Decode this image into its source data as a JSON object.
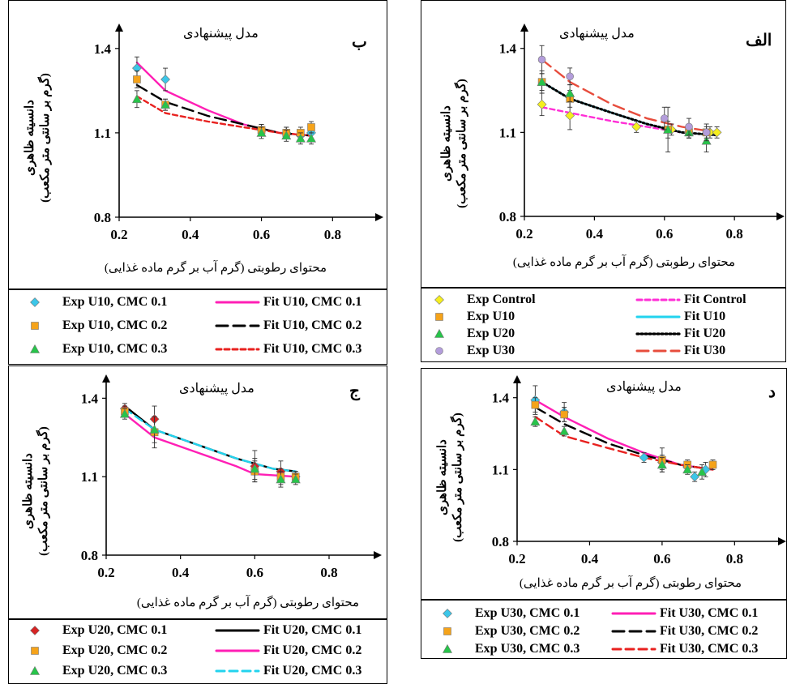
{
  "chart_data": [
    {
      "id": "alef",
      "type": "scatter",
      "panel_letter": "الف",
      "title": "مدل پیشنهادی",
      "xlabel": "محتوای رطوبتی (گرم آب بر گرم ماده غذایی)",
      "ylabel_line1": "دانسیته ظاهری",
      "ylabel_line2": "(گرم بر سانتی متر مکعب)",
      "xlim": [
        0.2,
        0.92
      ],
      "ylim": [
        0.8,
        1.46
      ],
      "xticks": [
        "0.2",
        "0.4",
        "0.6",
        "0.8"
      ],
      "yticks": [
        "0.8",
        "1.1",
        "1.4"
      ],
      "series": [
        {
          "name": "Exp Control",
          "kind": "exp",
          "marker": "diamond",
          "color": "#f5ee1f",
          "x": [
            0.25,
            0.33,
            0.52,
            0.62,
            0.67,
            0.73,
            0.75
          ],
          "y": [
            1.2,
            1.16,
            1.12,
            1.11,
            1.1,
            1.1,
            1.1
          ],
          "err": [
            0.04,
            0.05,
            0.02,
            0.02,
            0.02,
            0.02,
            0.02
          ]
        },
        {
          "name": "Exp U10",
          "kind": "exp",
          "marker": "square",
          "color": "#f5a31a",
          "x": [
            0.25,
            0.33,
            0.61,
            0.67,
            0.72
          ],
          "y": [
            1.28,
            1.22,
            1.11,
            1.1,
            1.1
          ],
          "err": [
            0.04,
            0.03,
            0.03,
            0.02,
            0.02
          ]
        },
        {
          "name": "Exp U20",
          "kind": "exp",
          "marker": "triangle",
          "color": "#27c44a",
          "x": [
            0.25,
            0.33,
            0.61,
            0.67,
            0.72
          ],
          "y": [
            1.28,
            1.24,
            1.11,
            1.1,
            1.07
          ],
          "err": [
            0.03,
            0.03,
            0.08,
            0.02,
            0.04
          ]
        },
        {
          "name": "Exp U30",
          "kind": "exp",
          "marker": "circle",
          "color": "#b39ddb",
          "x": [
            0.25,
            0.33,
            0.6,
            0.67,
            0.72
          ],
          "y": [
            1.36,
            1.3,
            1.15,
            1.12,
            1.1
          ],
          "err": [
            0.05,
            0.03,
            0.04,
            0.03,
            0.03
          ]
        },
        {
          "name": "Fit Control",
          "kind": "fit",
          "color": "#ff2ed6",
          "dash": "6,4",
          "x": [
            0.25,
            0.33,
            0.45,
            0.55,
            0.65,
            0.75
          ],
          "y": [
            1.19,
            1.17,
            1.14,
            1.12,
            1.1,
            1.09
          ]
        },
        {
          "name": "Fit U10",
          "kind": "fit",
          "color": "#22d3ee",
          "dash": "",
          "x": [
            0.25,
            0.33,
            0.45,
            0.55,
            0.65,
            0.75
          ],
          "y": [
            1.28,
            1.22,
            1.17,
            1.13,
            1.1,
            1.09
          ]
        },
        {
          "name": "Fit U20",
          "kind": "fit",
          "color": "#000000",
          "dash": "2,3",
          "x": [
            0.25,
            0.33,
            0.45,
            0.55,
            0.65,
            0.75
          ],
          "y": [
            1.28,
            1.22,
            1.17,
            1.13,
            1.1,
            1.09
          ]
        },
        {
          "name": "Fit U30",
          "kind": "fit",
          "color": "#e74c3c",
          "dash": "14,7",
          "x": [
            0.25,
            0.33,
            0.45,
            0.55,
            0.65,
            0.75
          ],
          "y": [
            1.36,
            1.28,
            1.2,
            1.15,
            1.12,
            1.1
          ]
        }
      ]
    },
    {
      "id": "be",
      "type": "scatter",
      "panel_letter": "ب",
      "title": "مدل پیشنهادی",
      "xlabel": "محتوای رطوبتی (گرم آب بر گرم ماده غذایی)",
      "ylabel_line1": "دانسیته ظاهری",
      "ylabel_line2": "(گرم بر سانتی متر مکعب)",
      "xlim": [
        0.2,
        0.92
      ],
      "ylim": [
        0.8,
        1.46
      ],
      "xticks": [
        "0.2",
        "0.4",
        "0.6",
        "0.8"
      ],
      "yticks": [
        "0.8",
        "1.1",
        "1.4"
      ],
      "series": [
        {
          "name": "Exp U10, CMC 0.1",
          "kind": "exp",
          "marker": "diamond",
          "color": "#3cc6e8",
          "x": [
            0.25,
            0.33,
            0.6,
            0.67,
            0.71,
            0.74
          ],
          "y": [
            1.33,
            1.29,
            1.11,
            1.1,
            1.09,
            1.1
          ],
          "err": [
            0.04,
            0.04,
            0.02,
            0.02,
            0.02,
            0.02
          ]
        },
        {
          "name": "Exp U10, CMC 0.2",
          "kind": "exp",
          "marker": "square",
          "color": "#f5a31a",
          "x": [
            0.25,
            0.33,
            0.6,
            0.67,
            0.71,
            0.74
          ],
          "y": [
            1.29,
            1.2,
            1.11,
            1.1,
            1.1,
            1.12
          ],
          "err": [
            0.03,
            0.02,
            0.02,
            0.02,
            0.02,
            0.02
          ]
        },
        {
          "name": "Exp U10, CMC 0.3",
          "kind": "exp",
          "marker": "triangle",
          "color": "#27c44a",
          "x": [
            0.25,
            0.33,
            0.6,
            0.67,
            0.71,
            0.74
          ],
          "y": [
            1.22,
            1.2,
            1.1,
            1.09,
            1.08,
            1.08
          ],
          "err": [
            0.03,
            0.02,
            0.02,
            0.02,
            0.02,
            0.02
          ]
        },
        {
          "name": "Fit U10, CMC 0.1",
          "kind": "fit",
          "color": "#ff1fb5",
          "dash": "",
          "x": [
            0.25,
            0.33,
            0.45,
            0.55,
            0.65,
            0.74
          ],
          "y": [
            1.35,
            1.25,
            1.18,
            1.13,
            1.1,
            1.09
          ]
        },
        {
          "name": "Fit U10, CMC 0.2",
          "kind": "fit",
          "color": "#000000",
          "dash": "14,7",
          "x": [
            0.25,
            0.33,
            0.45,
            0.55,
            0.65,
            0.74
          ],
          "y": [
            1.27,
            1.21,
            1.16,
            1.13,
            1.1,
            1.09
          ]
        },
        {
          "name": "Fit U10, CMC 0.3",
          "kind": "fit",
          "color": "#e8211f",
          "dash": "6,4",
          "x": [
            0.25,
            0.33,
            0.45,
            0.55,
            0.65,
            0.74
          ],
          "y": [
            1.23,
            1.17,
            1.14,
            1.12,
            1.1,
            1.09
          ]
        }
      ]
    },
    {
      "id": "jim",
      "type": "scatter",
      "panel_letter": "ج",
      "title": "مدل پیشنهادی",
      "xlabel": "محتوای رطوبتی (گرم آب بر گرم ماده غذایی)",
      "ylabel_line1": "دانسیته ظاهری",
      "ylabel_line2": "(گرم بر سانتی متر مکعب)",
      "xlim": [
        0.2,
        0.92
      ],
      "ylim": [
        0.8,
        1.46
      ],
      "xticks": [
        "0.2",
        "0.4",
        "0.6",
        "0.8"
      ],
      "yticks": [
        "0.8",
        "1.1",
        "1.4"
      ],
      "series": [
        {
          "name": "Exp U20, CMC 0.1",
          "kind": "exp",
          "marker": "diamond",
          "color": "#d62424",
          "x": [
            0.25,
            0.33,
            0.6,
            0.67,
            0.71
          ],
          "y": [
            1.36,
            1.32,
            1.14,
            1.12,
            1.1
          ],
          "err": [
            0.02,
            0.05,
            0.06,
            0.04,
            0.02
          ]
        },
        {
          "name": "Exp U20, CMC 0.2",
          "kind": "exp",
          "marker": "square",
          "color": "#f5a31a",
          "x": [
            0.25,
            0.33,
            0.6,
            0.67,
            0.71
          ],
          "y": [
            1.35,
            1.27,
            1.12,
            1.1,
            1.1
          ],
          "err": [
            0.02,
            0.06,
            0.04,
            0.03,
            0.02
          ]
        },
        {
          "name": "Exp U20, CMC 0.3",
          "kind": "exp",
          "marker": "triangle",
          "color": "#27c44a",
          "x": [
            0.25,
            0.33,
            0.6,
            0.67,
            0.71
          ],
          "y": [
            1.34,
            1.28,
            1.13,
            1.09,
            1.09
          ],
          "err": [
            0.02,
            0.05,
            0.04,
            0.03,
            0.02
          ]
        },
        {
          "name": "Fit U20, CMC 0.1",
          "kind": "fit",
          "color": "#000000",
          "dash": "",
          "x": [
            0.25,
            0.33,
            0.45,
            0.55,
            0.65,
            0.71
          ],
          "y": [
            1.37,
            1.28,
            1.22,
            1.17,
            1.13,
            1.12
          ]
        },
        {
          "name": "Fit U20, CMC 0.2",
          "kind": "fit",
          "color": "#ff1fb5",
          "dash": "",
          "x": [
            0.25,
            0.33,
            0.45,
            0.55,
            0.6,
            0.71
          ],
          "y": [
            1.34,
            1.25,
            1.19,
            1.14,
            1.11,
            1.1
          ]
        },
        {
          "name": "Fit U20, CMC 0.3",
          "kind": "fit",
          "color": "#22d3ee",
          "dash": "10,6",
          "x": [
            0.25,
            0.33,
            0.45,
            0.55,
            0.65,
            0.71
          ],
          "y": [
            1.36,
            1.28,
            1.22,
            1.17,
            1.13,
            1.12
          ]
        }
      ]
    },
    {
      "id": "dal",
      "type": "scatter",
      "panel_letter": "د",
      "title": "مدل پیشنهادی",
      "xlabel": "محتوای رطوبتی (گرم آب بر گرم ماده غذایی)",
      "ylabel_line1": "دانسیته ظاهری",
      "ylabel_line2": "(گرم بر سانتی متر مکعب)",
      "xlim": [
        0.2,
        0.92
      ],
      "ylim": [
        0.8,
        1.46
      ],
      "xticks": [
        "0.2",
        "0.4",
        "0.6",
        "0.8"
      ],
      "yticks": [
        "0.8",
        "1.1",
        "1.4"
      ],
      "series": [
        {
          "name": "Exp U30, CMC 0.1",
          "kind": "exp",
          "marker": "diamond",
          "color": "#3cc6e8",
          "x": [
            0.25,
            0.33,
            0.55,
            0.6,
            0.67,
            0.69,
            0.72
          ],
          "y": [
            1.39,
            1.34,
            1.15,
            1.13,
            1.11,
            1.07,
            1.1
          ],
          "err": [
            0.06,
            0.04,
            0.02,
            0.03,
            0.02,
            0.02,
            0.03
          ]
        },
        {
          "name": "Exp U30, CMC 0.2",
          "kind": "exp",
          "marker": "square",
          "color": "#f5a31a",
          "x": [
            0.25,
            0.33,
            0.6,
            0.67,
            0.74
          ],
          "y": [
            1.37,
            1.33,
            1.14,
            1.12,
            1.12
          ],
          "err": [
            0.03,
            0.03,
            0.05,
            0.02,
            0.02
          ]
        },
        {
          "name": "Exp U30, CMC 0.3",
          "kind": "exp",
          "marker": "triangle",
          "color": "#27c44a",
          "x": [
            0.25,
            0.33,
            0.6,
            0.67,
            0.71
          ],
          "y": [
            1.3,
            1.26,
            1.12,
            1.1,
            1.09
          ],
          "err": [
            0.02,
            0.02,
            0.03,
            0.02,
            0.03
          ]
        },
        {
          "name": "Fit U30, CMC 0.1",
          "kind": "fit",
          "color": "#ff1fb5",
          "dash": "",
          "x": [
            0.25,
            0.33,
            0.45,
            0.55,
            0.65,
            0.74
          ],
          "y": [
            1.39,
            1.32,
            1.23,
            1.17,
            1.12,
            1.1
          ]
        },
        {
          "name": "Fit U30, CMC 0.2",
          "kind": "fit",
          "color": "#000000",
          "dash": "14,7",
          "x": [
            0.25,
            0.33,
            0.45,
            0.55,
            0.65,
            0.74
          ],
          "y": [
            1.36,
            1.29,
            1.21,
            1.16,
            1.12,
            1.1
          ]
        },
        {
          "name": "Fit U30, CMC 0.3",
          "kind": "fit",
          "color": "#e8211f",
          "dash": "10,6",
          "x": [
            0.25,
            0.33,
            0.45,
            0.55,
            0.65,
            0.74
          ],
          "y": [
            1.32,
            1.24,
            1.19,
            1.15,
            1.12,
            1.1
          ]
        }
      ]
    }
  ]
}
